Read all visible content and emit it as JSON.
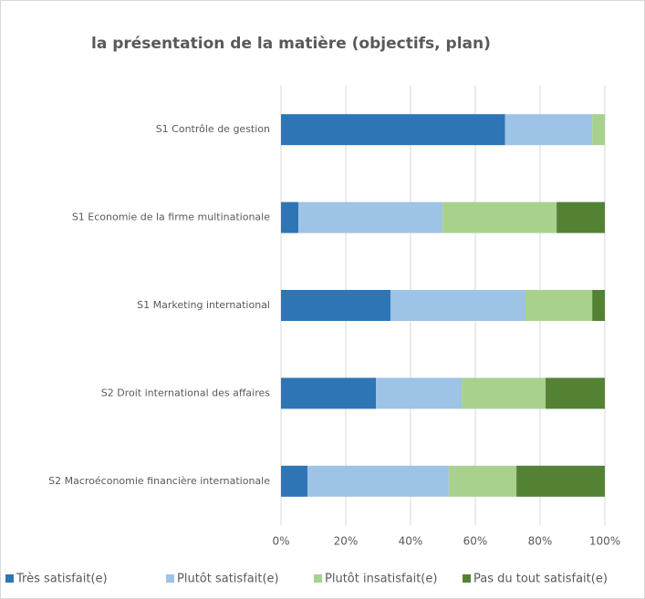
{
  "chart_data": {
    "type": "stacked-barh",
    "title": "la présentation de la matière (objectifs, plan)",
    "categories": [
      "S1 Contrôle de gestion",
      "S1 Economie de la firme multinationale",
      "S1 Marketing international",
      "S2 Droit international des affaires",
      "S2 Macroéconomie financière internationale"
    ],
    "series": [
      {
        "name": "Très satisfait(e)",
        "color": "#2e75b6",
        "values": [
          69.2,
          5.4,
          33.8,
          29.3,
          8.2
        ]
      },
      {
        "name": "Plutôt satisfait(e)",
        "color": "#9dc3e6",
        "values": [
          26.9,
          44.5,
          41.7,
          26.5,
          43.6
        ]
      },
      {
        "name": "Plutôt insatisfait(e)",
        "color": "#a9d18e",
        "values": [
          3.9,
          35.2,
          20.6,
          25.9,
          20.9
        ]
      },
      {
        "name": "Pas du tout satisfait(e)",
        "color": "#548235",
        "values": [
          0,
          14.9,
          3.9,
          18.3,
          27.3
        ]
      }
    ],
    "xlim": [
      0,
      100
    ],
    "xticks": [
      {
        "value": 0,
        "label": "0%"
      },
      {
        "value": 20,
        "label": "20%"
      },
      {
        "value": 40,
        "label": "40%"
      },
      {
        "value": 60,
        "label": "60%"
      },
      {
        "value": 80,
        "label": "80%"
      },
      {
        "value": 100,
        "label": "100%"
      }
    ],
    "grid": true,
    "legend": "bottom"
  }
}
